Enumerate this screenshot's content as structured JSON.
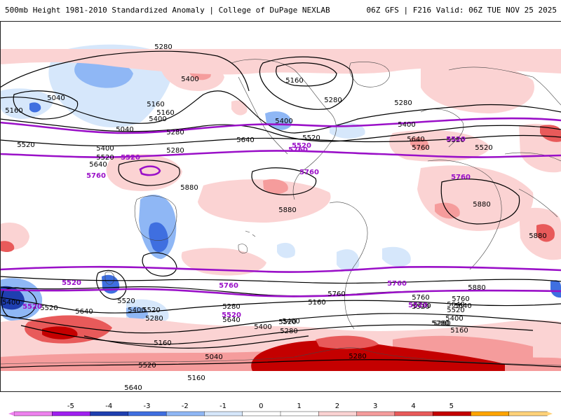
{
  "header": {
    "left": "500mb Height 1981-2010 Standardized Anomaly | College of DuPage NEXLAB",
    "right": "06Z GFS | F216 Valid: 06Z TUE NOV 25 2025"
  },
  "colorbar": {
    "ticks": [
      "-5",
      "-4",
      "-3",
      "-2",
      "-1",
      "0",
      "1",
      "2",
      "3",
      "4",
      "5"
    ],
    "colors": [
      "#ee82ee",
      "#a020f0",
      "#1f3fb0",
      "#3f6fe0",
      "#8fb7f5",
      "#d6e7fb",
      "#ffffff",
      "#ffffff",
      "#fbd3d3",
      "#f59c9c",
      "#e85a5a",
      "#c40000",
      "#ffa500",
      "#ffd27a"
    ]
  },
  "map": {
    "highlight_color": "#9a10c8",
    "contour_color": "#000000",
    "labels_black": [
      "5280",
      "5400",
      "5160",
      "5040",
      "5160",
      "5280",
      "5520",
      "5400",
      "5640",
      "5040",
      "5160",
      "5280",
      "5400",
      "5520",
      "5160",
      "5280",
      "5400",
      "5520",
      "5640",
      "5280",
      "5520",
      "5400",
      "5640",
      "5760",
      "5520",
      "5880",
      "5880",
      "5880",
      "5880",
      "5760",
      "5400",
      "5520",
      "5640",
      "5520",
      "5400",
      "5280",
      "5160",
      "5040",
      "5160",
      "5280",
      "5520",
      "5640",
      "5520",
      "5400",
      "5280",
      "5160",
      "5760",
      "5640",
      "5520",
      "5400",
      "5280",
      "5160",
      "5880",
      "5760",
      "5640",
      "5520",
      "5400",
      "5280",
      "5400",
      "5520",
      "5640",
      "5280"
    ],
    "labels_purple": [
      "5520",
      "5760",
      "5520",
      "5520",
      "5760",
      "5760",
      "5520",
      "5760",
      "5760",
      "5520",
      "5760",
      "5520",
      "5520"
    ]
  }
}
